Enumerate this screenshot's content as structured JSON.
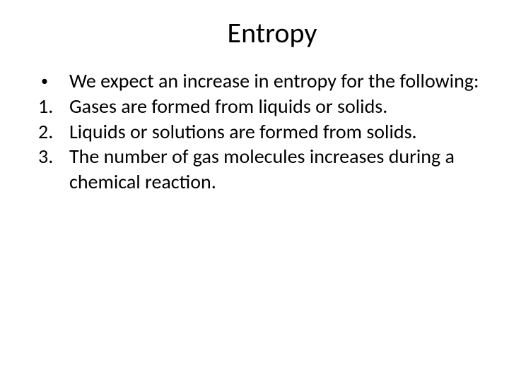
{
  "slide": {
    "title": "Entropy",
    "bullet": {
      "marker": "•",
      "text": "We expect an increase in entropy for the following:"
    },
    "items": [
      {
        "marker": "1.",
        "text": "Gases are formed from liquids or solids."
      },
      {
        "marker": "2.",
        "text": "Liquids or solutions are formed from solids."
      },
      {
        "marker": "3.",
        "text": "The number of gas molecules increases during a chemical reaction."
      }
    ]
  },
  "style": {
    "background_color": "#ffffff",
    "text_color": "#000000",
    "title_fontsize": 40,
    "body_fontsize": 28,
    "font_family": "Calibri"
  }
}
